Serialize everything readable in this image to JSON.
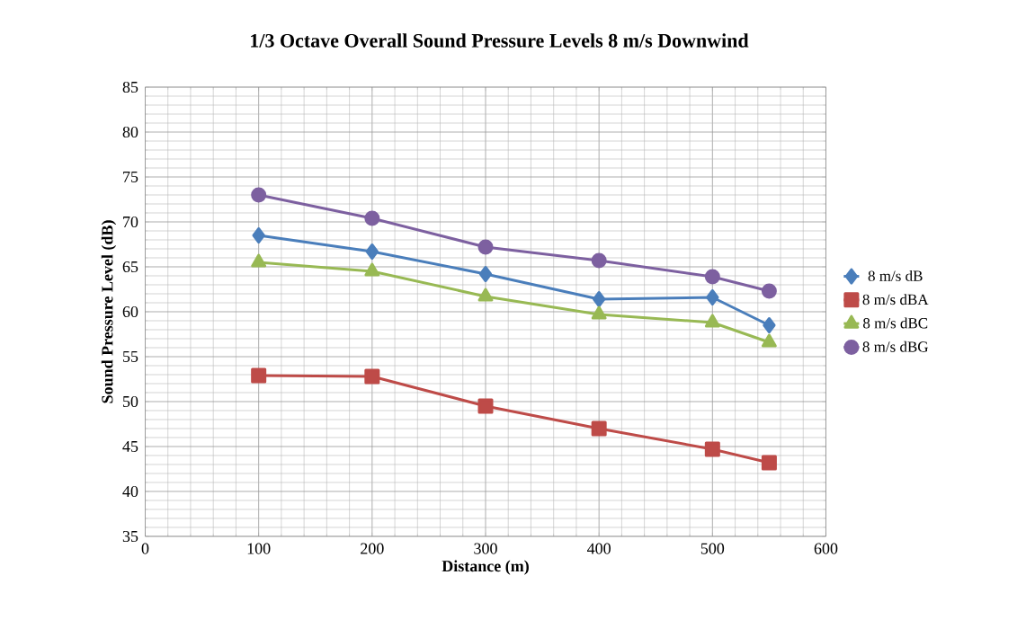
{
  "chart_data": {
    "type": "line",
    "title": "1/3 Octave Overall Sound Pressure Levels 8 m/s Downwind",
    "xlabel": "Distance (m)",
    "ylabel": "Sound Pressure Level (dB)",
    "x": [
      100,
      200,
      300,
      400,
      500,
      550
    ],
    "series": [
      {
        "name": "8 m/s dB",
        "color": "#4a7ebb",
        "marker": "diamond",
        "values": [
          68.5,
          66.7,
          64.2,
          61.4,
          61.6,
          58.5
        ]
      },
      {
        "name": "8 m/s dBA",
        "color": "#be4b48",
        "marker": "square",
        "values": [
          52.9,
          52.8,
          49.5,
          47.0,
          44.7,
          43.2
        ]
      },
      {
        "name": "8 m/s dBC",
        "color": "#98b954",
        "marker": "triangle",
        "values": [
          65.5,
          64.5,
          61.7,
          59.7,
          58.8,
          56.6
        ]
      },
      {
        "name": "8 m/s dBG",
        "color": "#7d60a0",
        "marker": "circle",
        "values": [
          73.0,
          70.4,
          67.2,
          65.7,
          63.9,
          62.3
        ]
      }
    ],
    "xlim": [
      0,
      600
    ],
    "ylim": [
      35,
      85
    ],
    "xticks": [
      0,
      100,
      200,
      300,
      400,
      500,
      600
    ],
    "yticks": [
      35,
      40,
      45,
      50,
      55,
      60,
      65,
      70,
      75,
      80,
      85
    ],
    "grid": true,
    "legend": "right",
    "line_style": "solid"
  }
}
